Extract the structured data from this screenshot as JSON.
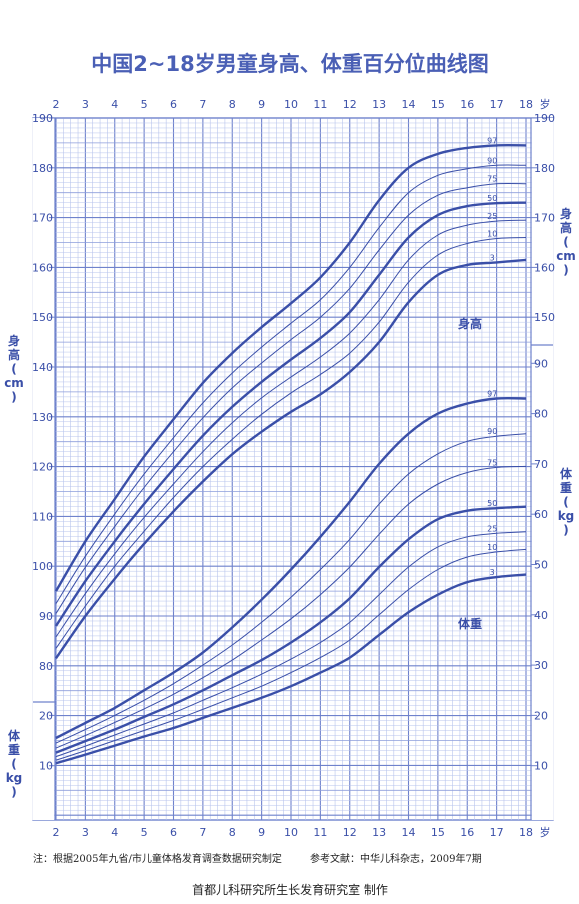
{
  "title": "中国2~18岁男童身高、体重百分位曲线图",
  "note": "注：根据2005年九省/市儿童体格发育调查数据研究制定",
  "reference": "参考文献：中华儿科杂志，2009年7期",
  "footer": "首都儿科研究所生长发育研究室  制作",
  "colors": {
    "line": "#3a4fa8",
    "grid_major": "#6f82cc",
    "grid_minor": "#b8c4ec",
    "accent": "#4a5fb5"
  },
  "chart_data": {
    "type": "line",
    "x_unit": "岁",
    "x_ticks": [
      2,
      3,
      4,
      5,
      6,
      7,
      8,
      9,
      10,
      11,
      12,
      13,
      14,
      15,
      16,
      17,
      18
    ],
    "x_range": [
      2,
      18
    ],
    "height": {
      "label": "身高",
      "axis_label": [
        "身",
        "高",
        "(",
        "cm",
        ")"
      ],
      "unit": "cm",
      "y_range": [
        77,
        190
      ],
      "y_ticks": [
        80,
        90,
        100,
        110,
        120,
        130,
        140,
        150,
        160,
        170,
        180,
        190
      ],
      "ages": [
        2,
        3,
        4,
        5,
        6,
        7,
        8,
        9,
        10,
        11,
        12,
        13,
        14,
        15,
        16,
        17,
        18
      ],
      "series": [
        {
          "name": "97",
          "values": [
            95.0,
            105.0,
            113.5,
            122.0,
            129.5,
            136.8,
            142.8,
            148.0,
            152.8,
            158.0,
            165.0,
            173.5,
            180.0,
            182.8,
            184.0,
            184.5,
            184.5
          ]
        },
        {
          "name": "90",
          "values": [
            92.5,
            102.0,
            110.5,
            118.5,
            125.8,
            132.8,
            138.8,
            144.0,
            148.8,
            153.5,
            160.0,
            168.0,
            175.0,
            178.5,
            179.8,
            180.5,
            180.5
          ]
        },
        {
          "name": "75",
          "values": [
            90.5,
            99.8,
            108.0,
            115.8,
            123.0,
            129.8,
            135.8,
            140.8,
            145.5,
            150.0,
            155.8,
            163.5,
            170.5,
            174.5,
            176.0,
            176.8,
            176.8
          ]
        },
        {
          "name": "50",
          "values": [
            88.0,
            97.0,
            105.0,
            112.5,
            119.5,
            126.2,
            132.0,
            137.0,
            141.5,
            145.8,
            151.0,
            158.5,
            166.0,
            170.5,
            172.3,
            172.9,
            173.0
          ]
        },
        {
          "name": "25",
          "values": [
            85.8,
            94.5,
            102.5,
            109.8,
            116.5,
            123.0,
            128.8,
            133.8,
            138.0,
            142.0,
            146.8,
            153.5,
            161.5,
            166.5,
            168.5,
            169.3,
            169.5
          ]
        },
        {
          "name": "10",
          "values": [
            83.5,
            92.0,
            100.0,
            107.0,
            113.8,
            120.0,
            125.5,
            130.5,
            134.8,
            138.5,
            142.8,
            149.0,
            157.0,
            162.5,
            164.8,
            165.8,
            166.0
          ]
        },
        {
          "name": "3",
          "values": [
            81.5,
            90.0,
            97.5,
            104.5,
            111.0,
            117.0,
            122.5,
            127.0,
            131.0,
            134.5,
            139.0,
            145.0,
            153.0,
            158.5,
            160.5,
            161.0,
            161.5
          ]
        }
      ]
    },
    "weight": {
      "label": "体重",
      "axis_label": [
        "体",
        "重",
        "(",
        "kg",
        ")"
      ],
      "unit": "kg",
      "y_range": [
        0,
        95
      ],
      "y_ticks": [
        10,
        20,
        30,
        40,
        50,
        60,
        70,
        80,
        90
      ],
      "ages": [
        2,
        3,
        4,
        5,
        6,
        7,
        8,
        9,
        10,
        11,
        12,
        13,
        14,
        15,
        16,
        17,
        18
      ],
      "series": [
        {
          "name": "97",
          "values": [
            15.5,
            18.5,
            21.5,
            25.0,
            28.5,
            32.5,
            37.5,
            43.0,
            49.0,
            55.5,
            62.5,
            70.0,
            76.0,
            80.0,
            82.0,
            83.0,
            83.0
          ]
        },
        {
          "name": "90",
          "values": [
            14.5,
            17.2,
            20.0,
            23.0,
            26.3,
            30.0,
            34.0,
            38.5,
            43.5,
            49.0,
            55.0,
            62.0,
            68.0,
            72.0,
            74.5,
            75.5,
            76.0
          ]
        },
        {
          "name": "75",
          "values": [
            13.5,
            16.0,
            18.6,
            21.3,
            24.2,
            27.5,
            31.0,
            35.0,
            39.2,
            44.0,
            49.5,
            56.0,
            62.0,
            66.0,
            68.3,
            69.3,
            69.5
          ]
        },
        {
          "name": "50",
          "values": [
            12.6,
            14.9,
            17.2,
            19.7,
            22.2,
            25.0,
            28.0,
            31.0,
            34.5,
            38.5,
            43.3,
            49.5,
            55.0,
            59.0,
            60.7,
            61.2,
            61.5
          ]
        },
        {
          "name": "25",
          "values": [
            11.8,
            13.9,
            16.1,
            18.3,
            20.5,
            23.0,
            25.5,
            28.2,
            31.2,
            34.5,
            38.5,
            44.0,
            49.5,
            53.5,
            55.5,
            56.2,
            56.5
          ]
        },
        {
          "name": "10",
          "values": [
            11.1,
            13.0,
            15.0,
            17.0,
            19.0,
            21.2,
            23.5,
            25.8,
            28.5,
            31.5,
            35.0,
            40.0,
            45.0,
            49.0,
            51.5,
            52.5,
            53.0
          ]
        },
        {
          "name": "3",
          "values": [
            10.5,
            12.2,
            14.0,
            15.8,
            17.5,
            19.5,
            21.5,
            23.5,
            25.8,
            28.5,
            31.5,
            36.0,
            40.5,
            44.0,
            46.5,
            47.5,
            48.0
          ]
        }
      ]
    }
  }
}
